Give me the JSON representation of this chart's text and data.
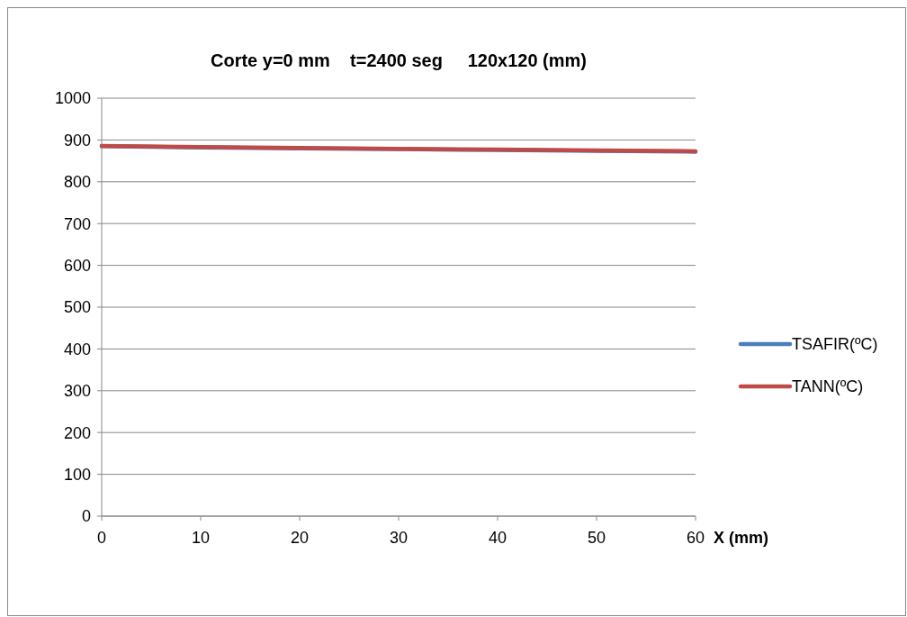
{
  "chart_data": {
    "type": "line",
    "title": "Corte y=0 mm    t=2400 seg     120x120 (mm)",
    "xlabel": "X (mm)",
    "x": [
      0,
      10,
      20,
      30,
      40,
      50,
      60
    ],
    "series": [
      {
        "name": "TSAFIR(ºC)",
        "color": "#4a7ebb",
        "values": [
          885,
          882,
          880,
          878,
          876,
          874,
          872
        ]
      },
      {
        "name": "TANN(ºC)",
        "color": "#be4b48",
        "values": [
          886,
          883,
          881,
          879,
          877,
          875,
          873
        ]
      }
    ],
    "xlim": [
      0,
      60
    ],
    "xticks": [
      0,
      10,
      20,
      30,
      40,
      50,
      60
    ],
    "ylim": [
      0,
      1000
    ],
    "yticks": [
      0,
      100,
      200,
      300,
      400,
      500,
      600,
      700,
      800,
      900,
      1000
    ],
    "grid": "y",
    "legend": "right",
    "marker": "none",
    "line_style": "solid"
  }
}
